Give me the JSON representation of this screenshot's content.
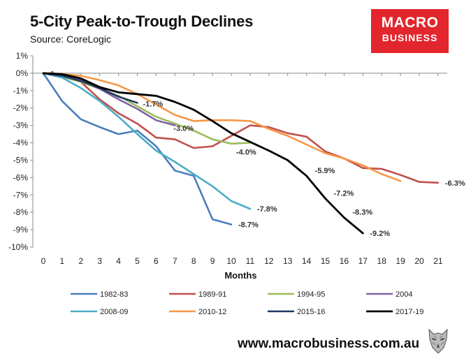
{
  "title": "5-City Peak-to-Trough Declines",
  "subtitle": "Source: CoreLogic",
  "logo": {
    "line1": "MACRO",
    "line2": "BUSINESS"
  },
  "footer": {
    "url": "www.macrobusiness.com.au"
  },
  "colors": {
    "1982-83": "#4a7ebb",
    "1989-91": "#c0504d",
    "1994-95": "#9bbb59",
    "2004": "#8064a2",
    "2008-09": "#4bacc6",
    "2010-12": "#f79646",
    "2015-16": "#1f3864",
    "2017-19": "#000000",
    "logo_bg": "#e3262d"
  },
  "chart_data": {
    "type": "line",
    "title": "5-City Peak-to-Trough Declines",
    "xlabel": "Months",
    "ylabel": "",
    "xlim": [
      0,
      21
    ],
    "ylim": [
      -10,
      1
    ],
    "x_ticks": [
      "0",
      "1",
      "2",
      "3",
      "4",
      "5",
      "6",
      "7",
      "8",
      "9",
      "10",
      "11",
      "12",
      "13",
      "14",
      "15",
      "16",
      "17",
      "18",
      "19",
      "20",
      "21"
    ],
    "y_ticks": [
      "1%",
      "0%",
      "-1%",
      "-2%",
      "-3%",
      "-4%",
      "-5%",
      "-6%",
      "-7%",
      "-8%",
      "-9%",
      "-10%"
    ],
    "legend_position": "bottom",
    "series": [
      {
        "name": "1982-83",
        "x": [
          0,
          1,
          2,
          3,
          4,
          5,
          6,
          7,
          8,
          9,
          10
        ],
        "values": [
          0,
          -1.6,
          -2.65,
          -3.1,
          -3.5,
          -3.3,
          -4.2,
          -5.6,
          -5.9,
          -8.4,
          -8.7
        ],
        "end_label": "-8.7%"
      },
      {
        "name": "1989-91",
        "x": [
          0,
          1,
          2,
          3,
          4,
          5,
          6,
          7,
          8,
          9,
          10,
          11,
          12,
          13,
          14,
          15,
          16,
          17,
          18,
          19,
          20,
          21
        ],
        "values": [
          0,
          -0.15,
          -0.5,
          -1.5,
          -2.3,
          -2.9,
          -3.7,
          -3.8,
          -4.3,
          -4.2,
          -3.6,
          -3.0,
          -3.1,
          -3.45,
          -3.65,
          -4.5,
          -4.9,
          -5.45,
          -5.5,
          -5.85,
          -6.25,
          -6.3
        ],
        "end_label": "-6.3%"
      },
      {
        "name": "1994-95",
        "x": [
          0,
          1,
          2,
          3,
          4,
          5,
          6,
          7,
          8,
          9,
          10,
          11
        ],
        "values": [
          0,
          -0.2,
          -0.5,
          -0.9,
          -1.3,
          -1.9,
          -2.5,
          -2.9,
          -3.3,
          -3.8,
          -4.05,
          -4.0
        ],
        "end_label": "-4.0%"
      },
      {
        "name": "2004",
        "x": [
          0,
          1,
          2,
          3,
          4,
          5,
          6,
          7
        ],
        "values": [
          0,
          -0.1,
          -0.4,
          -0.9,
          -1.5,
          -2.05,
          -2.7,
          -3.0
        ],
        "end_label": "-3.0%"
      },
      {
        "name": "2008-09",
        "x": [
          0,
          1,
          2,
          3,
          4,
          5,
          6,
          7,
          8,
          9,
          10,
          11
        ],
        "values": [
          0,
          -0.25,
          -0.85,
          -1.6,
          -2.5,
          -3.5,
          -4.45,
          -5.1,
          -5.8,
          -6.5,
          -7.35,
          -7.8
        ],
        "end_label": "-7.8%"
      },
      {
        "name": "2010-12",
        "x": [
          0,
          1,
          2,
          3,
          4,
          5,
          6,
          7,
          8,
          9,
          10,
          11,
          12,
          13,
          14,
          15,
          16,
          17,
          18,
          19
        ],
        "values": [
          0,
          -0.05,
          -0.15,
          -0.4,
          -0.7,
          -1.2,
          -1.8,
          -2.4,
          -2.75,
          -2.7,
          -2.7,
          -2.75,
          -3.2,
          -3.6,
          -4.1,
          -4.6,
          -4.9,
          -5.3,
          -5.8,
          -6.2
        ],
        "end_label": ""
      },
      {
        "name": "2015-16",
        "x": [
          0,
          1,
          2,
          3,
          4,
          5
        ],
        "values": [
          0,
          -0.15,
          -0.45,
          -0.85,
          -1.35,
          -1.7
        ],
        "end_label": "-1.7%"
      },
      {
        "name": "2017-19",
        "x": [
          0,
          1,
          2,
          3,
          4,
          5,
          6,
          7,
          8,
          9,
          10,
          11,
          12,
          13,
          14,
          15,
          16,
          17
        ],
        "values": [
          0,
          -0.05,
          -0.3,
          -0.8,
          -1.1,
          -1.2,
          -1.3,
          -1.65,
          -2.1,
          -2.75,
          -3.45,
          -3.95,
          -4.45,
          -5.0,
          -5.9,
          -7.2,
          -8.3,
          -9.2
        ],
        "end_label": "-9.2%"
      }
    ],
    "annotations": [
      {
        "series": "2017-19",
        "x": 14,
        "y": -5.9,
        "text": "-5.9%"
      },
      {
        "series": "2017-19",
        "x": 15,
        "y": -7.2,
        "text": "-7.2%"
      },
      {
        "series": "2017-19",
        "x": 16,
        "y": -8.3,
        "text": "-8.3%"
      }
    ]
  }
}
